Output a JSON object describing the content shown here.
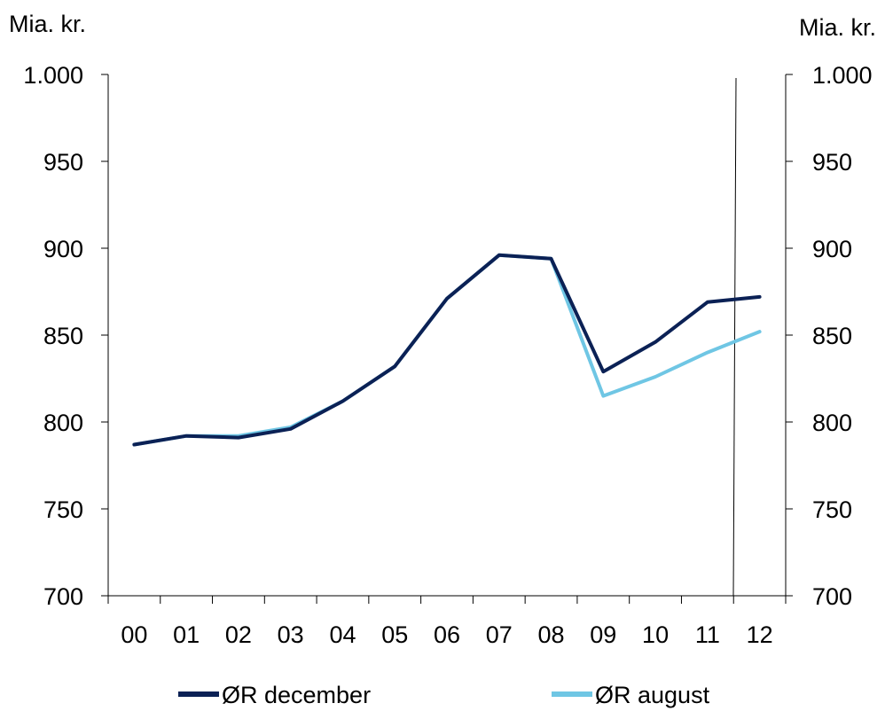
{
  "chart_data": {
    "type": "line",
    "y_unit_left": "Mia. kr.",
    "y_unit_right": "Mia. kr.",
    "x_tick_labels": [
      "00",
      "01",
      "02",
      "03",
      "04",
      "05",
      "06",
      "07",
      "08",
      "09",
      "10",
      "11",
      "12"
    ],
    "y_ticks": [
      700,
      750,
      800,
      850,
      900,
      950,
      1000
    ],
    "y_tick_labels": [
      "700",
      "750",
      "800",
      "850",
      "900",
      "950",
      "1.000"
    ],
    "ylim": [
      700,
      1000
    ],
    "grid": false,
    "legend_position": "bottom",
    "series": [
      {
        "name": "ØR december",
        "color": "#0b2155",
        "values": [
          787,
          792,
          791,
          796,
          812,
          832,
          871,
          896,
          894,
          829,
          846,
          869,
          872
        ]
      },
      {
        "name": "ØR august",
        "color": "#6fc6e4",
        "values": [
          787,
          792,
          792,
          797,
          812,
          832,
          871,
          896,
          894,
          815,
          826,
          840,
          852
        ]
      }
    ]
  }
}
